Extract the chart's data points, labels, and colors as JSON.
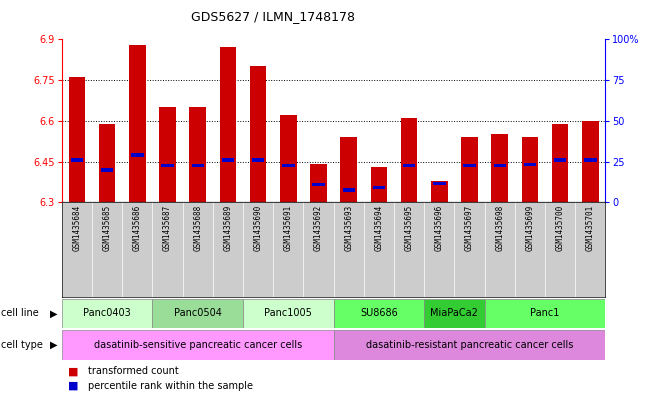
{
  "title": "GDS5627 / ILMN_1748178",
  "samples": [
    "GSM1435684",
    "GSM1435685",
    "GSM1435686",
    "GSM1435687",
    "GSM1435688",
    "GSM1435689",
    "GSM1435690",
    "GSM1435691",
    "GSM1435692",
    "GSM1435693",
    "GSM1435694",
    "GSM1435695",
    "GSM1435696",
    "GSM1435697",
    "GSM1435698",
    "GSM1435699",
    "GSM1435700",
    "GSM1435701"
  ],
  "transformed_count": [
    6.76,
    6.59,
    6.88,
    6.65,
    6.65,
    6.87,
    6.8,
    6.62,
    6.44,
    6.54,
    6.43,
    6.61,
    6.38,
    6.54,
    6.55,
    6.54,
    6.59,
    6.6
  ],
  "percentile": [
    6.455,
    6.42,
    6.475,
    6.435,
    6.435,
    6.455,
    6.455,
    6.435,
    6.365,
    6.345,
    6.355,
    6.435,
    6.37,
    6.435,
    6.435,
    6.44,
    6.455,
    6.455
  ],
  "cell_lines": [
    {
      "name": "Panc0403",
      "start": 0,
      "end": 2
    },
    {
      "name": "Panc0504",
      "start": 3,
      "end": 5
    },
    {
      "name": "Panc1005",
      "start": 6,
      "end": 8
    },
    {
      "name": "SU8686",
      "start": 9,
      "end": 11
    },
    {
      "name": "MiaPaCa2",
      "start": 12,
      "end": 13
    },
    {
      "name": "Panc1",
      "start": 14,
      "end": 17
    }
  ],
  "cell_types": [
    {
      "name": "dasatinib-sensitive pancreatic cancer cells",
      "start": 0,
      "end": 8
    },
    {
      "name": "dasatinib-resistant pancreatic cancer cells",
      "start": 9,
      "end": 17
    }
  ],
  "ylim_left": [
    6.3,
    6.9
  ],
  "ylim_right": [
    0,
    100
  ],
  "yticks_left": [
    6.3,
    6.45,
    6.6,
    6.75,
    6.9
  ],
  "yticks_right": [
    0,
    25,
    50,
    75,
    100
  ],
  "bar_color": "#cc0000",
  "percentile_color": "#0000cc",
  "cell_line_colors": [
    "#ccffcc",
    "#aaddaa",
    "#ccffcc",
    "#66ee66",
    "#55dd55",
    "#66ee66"
  ],
  "cell_type_colors": [
    "#ee88ee",
    "#cc88cc"
  ],
  "xtick_bg": "#cccccc",
  "bar_width": 0.55
}
